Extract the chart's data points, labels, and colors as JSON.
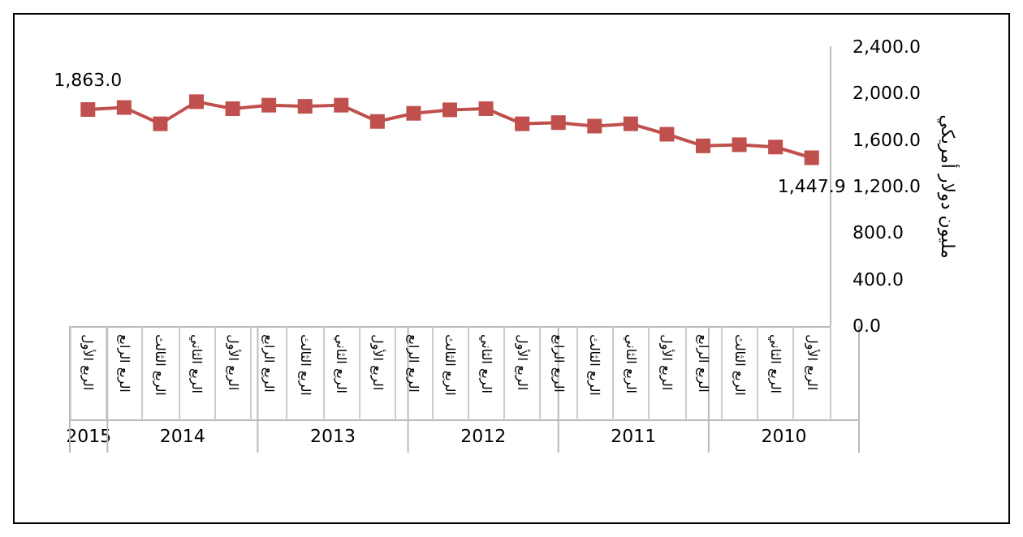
{
  "chart_data": {
    "type": "line",
    "ylabel": "مليون دولار أمريكي",
    "categories": [
      "الربع الأول",
      "الربع الرابع",
      "الربع الثالث",
      "الربع الثاني",
      "الربع الأول",
      "الربع الرابع",
      "الربع الثالث",
      "الربع الثاني",
      "الربع الأول",
      "الربع الرابع",
      "الربع الثالث",
      "الربع الثاني",
      "الربع الأول",
      "الربع الرابع",
      "الربع الثالث",
      "الربع الثاني",
      "الربع الأول",
      "الربع الرابع",
      "الربع الثالث",
      "الربع الثاني",
      "الربع الأول"
    ],
    "series": [
      {
        "color": "#c0504d",
        "values": [
          1863.0,
          1880,
          1740,
          1930,
          1870,
          1900,
          1890,
          1900,
          1760,
          1830,
          1860,
          1870,
          1740,
          1750,
          1720,
          1740,
          1650,
          1550,
          1560,
          1540,
          1447.9
        ],
        "value_labels": [
          "1,863.0",
          null,
          null,
          null,
          null,
          null,
          null,
          null,
          null,
          null,
          null,
          null,
          null,
          null,
          null,
          null,
          null,
          null,
          null,
          null,
          "1,447.9"
        ]
      }
    ],
    "annotations": [
      "2015",
      "2014",
      "2013",
      "2012",
      "2011",
      "2010"
    ],
    "ylim": [
      0,
      2400
    ],
    "yticks": [
      {
        "value": 0,
        "label": "0.0"
      },
      {
        "value": 400,
        "label": "400.0"
      },
      {
        "value": 800,
        "label": "800.0"
      },
      {
        "value": 1200,
        "label": "1,200.0"
      },
      {
        "value": 1600,
        "label": "1,600.0"
      },
      {
        "value": 2000,
        "label": "2,000.0"
      },
      {
        "value": 2400,
        "label": "2,400.0"
      }
    ],
    "grid": false,
    "marker": "square",
    "line_style": "solid"
  }
}
